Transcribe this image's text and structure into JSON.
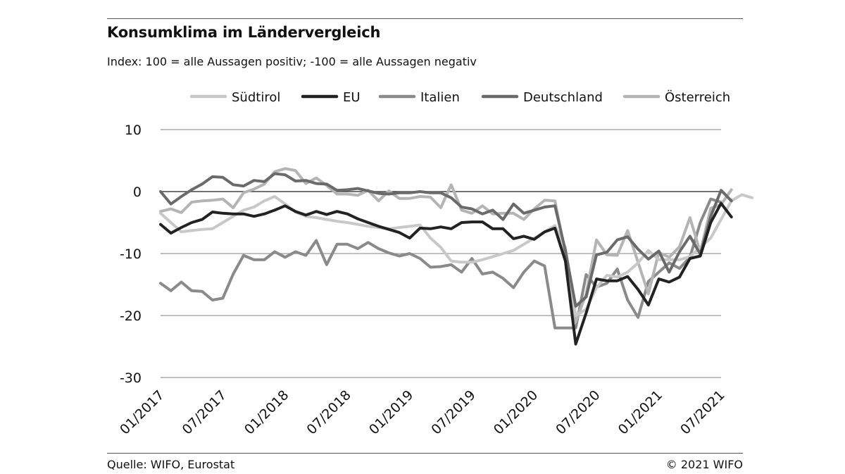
{
  "title": "Konsumklima im Ländervergleich",
  "subtitle": "Index: 100 = alle Aussagen positiv; -100 =  alle Aussagen negativ",
  "source": "Quelle: WIFO, Eurostat",
  "copyright": "© 2021 WIFO",
  "chart_data": {
    "type": "line",
    "title": "Konsumklima im Ländervergleich",
    "xlabel": "",
    "ylabel": "",
    "ylim": [
      -30,
      10
    ],
    "yticks": [
      10,
      0,
      -10,
      -20,
      -30
    ],
    "xlim": [
      "01/2017",
      "07/2021"
    ],
    "x_tick_labels": [
      "01/2017",
      "07/2017",
      "01/2018",
      "07/2018",
      "01/2019",
      "07/2019",
      "01/2020",
      "07/2020",
      "01/2021",
      "07/2021"
    ],
    "grid": "horizontal",
    "legend_position": "top",
    "x_start": "01/2017",
    "x_step": "1 month",
    "series": [
      {
        "name": "Südtirol",
        "color": "#c8c8c8",
        "values": [
          -3.5,
          -5,
          -6.5,
          -6.3,
          -6.1,
          -6,
          -5,
          -4,
          -3,
          -2.5,
          -1.5,
          -0.8,
          -2,
          -3.3,
          -4,
          -4.2,
          -4.5,
          -4.8,
          -5,
          -5.3,
          -5.6,
          -5.8,
          -6,
          -5.8,
          -5.6,
          -5.4,
          -7.5,
          -9,
          -11.2,
          -11.4,
          -11.4,
          -11,
          -10.5,
          -10,
          -9.5,
          -8.5,
          -7.5,
          -6.5,
          -5.5,
          -9,
          -20,
          -19,
          -15.5,
          -13.5,
          -13.8,
          -13,
          -11.5,
          -9.5,
          -11,
          -11,
          -11,
          -10.5,
          -9,
          -7.5,
          -4.5,
          -1.5,
          -0.5,
          -1
        ]
      },
      {
        "name": "EU",
        "color": "#222222",
        "values": [
          -5.3,
          -6.7,
          -5.8,
          -5,
          -4.5,
          -3.3,
          -3.5,
          -3.6,
          -3.6,
          -4,
          -3.6,
          -3,
          -2.3,
          -3.2,
          -3.8,
          -3.2,
          -3.7,
          -3.2,
          -3.6,
          -4.4,
          -5,
          -5.6,
          -6.1,
          -6.6,
          -7.5,
          -5.9,
          -6,
          -5.7,
          -6,
          -5,
          -4.9,
          -4.9,
          -6,
          -6,
          -7.6,
          -7.2,
          -7.7,
          -6.5,
          -5.9,
          -11.2,
          -24.6,
          -19.6,
          -14.1,
          -14.4,
          -14.4,
          -13.7,
          -15.8,
          -18.3,
          -14.1,
          -14.6,
          -13.8,
          -10.8,
          -10.4,
          -5,
          -1.9,
          -4.1
        ]
      },
      {
        "name": "Italien",
        "color": "#8a8a8a",
        "values": [
          -14.8,
          -16,
          -14.6,
          -16,
          -16.1,
          -17.5,
          -17.2,
          -13.3,
          -10.3,
          -11,
          -11,
          -9.7,
          -10.6,
          -9.7,
          -10.3,
          -7.9,
          -11.8,
          -8.5,
          -8.5,
          -9.2,
          -8.2,
          -9.2,
          -9.9,
          -10.4,
          -10,
          -10.8,
          -12.2,
          -12.1,
          -11.8,
          -13,
          -10.8,
          -13.3,
          -13,
          -14,
          -15.5,
          -13,
          -11.2,
          -12,
          -22,
          -22,
          -22,
          -13.4,
          -15.4,
          -14.8,
          -12.5,
          -17.5,
          -20.3,
          -14.5,
          -13,
          -11.5,
          -12.4,
          -10.6,
          -5,
          -1.2,
          -1.7
        ]
      },
      {
        "name": "Deutschland",
        "color": "#6a6a6a",
        "values": [
          0,
          -2,
          -0.8,
          0.3,
          1.2,
          2.4,
          2.3,
          1.1,
          0.9,
          1.8,
          1.6,
          2.9,
          2.7,
          1.7,
          1.8,
          1.3,
          1.2,
          0.2,
          0.3,
          0.5,
          0.1,
          -0.3,
          -0.4,
          -0.2,
          -0.2,
          0,
          -0.2,
          -0.2,
          -1,
          -2.5,
          -2.8,
          -3.6,
          -3,
          -4.5,
          -2,
          -3.5,
          -3,
          -2.5,
          -2.3,
          -9.5,
          -18.5,
          -17,
          -10.2,
          -9.8,
          -7.8,
          -7.3,
          -9.3,
          -10.9,
          -9.6,
          -13,
          -9.7,
          -7.2,
          -10.1,
          -4,
          0.2,
          -1.5
        ]
      },
      {
        "name": "Österreich",
        "color": "#b4b4b4",
        "values": [
          -3.2,
          -2.8,
          -3.4,
          -1.7,
          -1.5,
          -1.4,
          -1.2,
          -2.6,
          -0.2,
          0.4,
          1.2,
          3.2,
          3.7,
          3.4,
          1.3,
          2.2,
          1,
          -0.4,
          -0.4,
          -0.6,
          0.2,
          -1.5,
          0.1,
          -1.1,
          -1.1,
          -0.8,
          -0.9,
          -2.6,
          1.1,
          -3,
          -3.5,
          -2.3,
          -3.6,
          -3.5,
          -3.5,
          -4.5,
          -2.8,
          -1.4,
          -1.5,
          -10,
          -21,
          -16.5,
          -7.8,
          -10.2,
          -10.3,
          -6.3,
          -11.4,
          -16.5,
          -9.8,
          -10.6,
          -8.9,
          -4.2,
          -9.8,
          -2.7,
          -2.1,
          0.3
        ]
      }
    ]
  }
}
